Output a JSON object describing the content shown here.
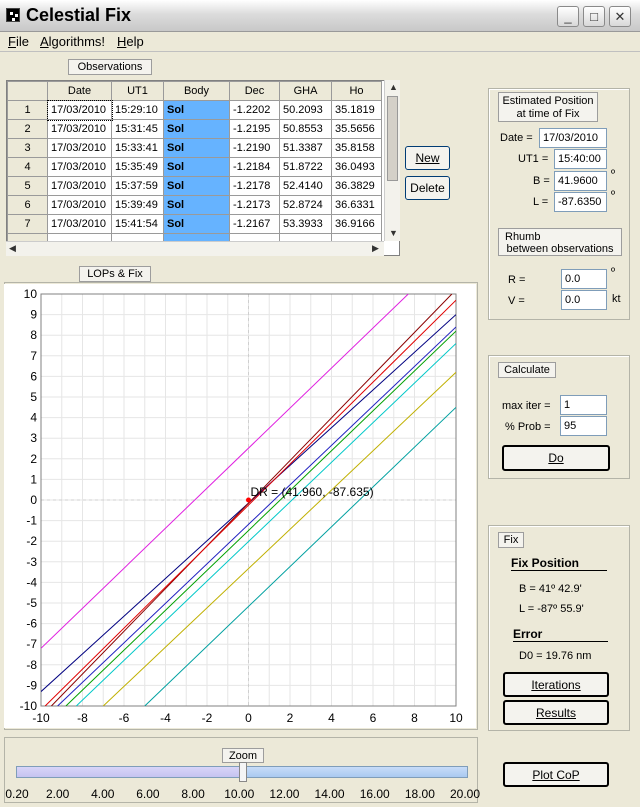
{
  "window": {
    "title": "Celestial Fix",
    "minimize": "_",
    "maximize": "□",
    "close": "✕"
  },
  "menu": [
    {
      "label": "File",
      "accel": "F",
      "rest": "ile"
    },
    {
      "label": "Algorithms!",
      "accel": "A",
      "rest": "lgorithms!"
    },
    {
      "label": "Help",
      "accel": "H",
      "rest": "elp"
    }
  ],
  "observations": {
    "button": "Observations",
    "columns": [
      "Date",
      "UT1",
      "Body",
      "Dec",
      "GHA",
      "Ho"
    ],
    "rows": [
      {
        "n": "1",
        "date": "17/03/2010",
        "ut1": "15:29:10",
        "body": "Sol",
        "dec": "-1.2202",
        "gha": "50.2093",
        "ho": "35.1819"
      },
      {
        "n": "2",
        "date": "17/03/2010",
        "ut1": "15:31:45",
        "body": "Sol",
        "dec": "-1.2195",
        "gha": "50.8553",
        "ho": "35.5656"
      },
      {
        "n": "3",
        "date": "17/03/2010",
        "ut1": "15:33:41",
        "body": "Sol",
        "dec": "-1.2190",
        "gha": "51.3387",
        "ho": "35.8158"
      },
      {
        "n": "4",
        "date": "17/03/2010",
        "ut1": "15:35:49",
        "body": "Sol",
        "dec": "-1.2184",
        "gha": "51.8722",
        "ho": "36.0493"
      },
      {
        "n": "5",
        "date": "17/03/2010",
        "ut1": "15:37:59",
        "body": "Sol",
        "dec": "-1.2178",
        "gha": "52.4140",
        "ho": "36.3829"
      },
      {
        "n": "6",
        "date": "17/03/2010",
        "ut1": "15:39:49",
        "body": "Sol",
        "dec": "-1.2173",
        "gha": "52.8724",
        "ho": "36.6331"
      },
      {
        "n": "7",
        "date": "17/03/2010",
        "ut1": "15:41:54",
        "body": "Sol",
        "dec": "-1.2167",
        "gha": "53.3933",
        "ho": "36.9166"
      }
    ],
    "new_button": "New",
    "delete_button": "Delete"
  },
  "estimated": {
    "button_line1": "Estimated Position",
    "button_line2": "at time of Fix",
    "date_label": "Date =",
    "date_value": "17/03/2010",
    "ut1_label": "UT1 =",
    "ut1_value": "15:40:00",
    "b_label": "B =",
    "b_value": "41.9600",
    "l_label": "L =",
    "l_value": "-87.6350",
    "degree": "º"
  },
  "rhumb": {
    "button_line1": "Rhumb",
    "button_line2": "between observations",
    "r_label": "R =",
    "r_value": "0.0",
    "r_unit": "º",
    "v_label": "V =",
    "v_value": "0.0",
    "v_unit": "kt"
  },
  "calculate": {
    "button": "Calculate",
    "maxiter_label": "max iter =",
    "maxiter_value": "1",
    "prob_label": "% Prob =",
    "prob_value": "95",
    "do_button": "Do"
  },
  "fix": {
    "button": "Fix",
    "heading": "Fix Position",
    "b_text": "B =  41º 42.9'",
    "l_text": "L = -87º 55.9'",
    "error_heading": "Error",
    "d0_text": "D0 = 19.76 nm",
    "iterations_button": "Iterations",
    "results_button": "Results"
  },
  "lops": {
    "button": "LOPs & Fix"
  },
  "chart_data": {
    "type": "line",
    "xlim": [
      -10,
      10
    ],
    "ylim": [
      -10,
      10
    ],
    "xticks": [
      "-10",
      "-8",
      "-6",
      "-4",
      "-2",
      "0",
      "2",
      "4",
      "6",
      "8",
      "10"
    ],
    "yticks": [
      "10",
      "9",
      "8",
      "7",
      "6",
      "5",
      "4",
      "3",
      "2",
      "1",
      "0",
      "-1",
      "-2",
      "-3",
      "-4",
      "-5",
      "-6",
      "-7",
      "-8",
      "-9",
      "-10"
    ],
    "grid": true,
    "annotation": {
      "text": "DR = (41.960, -87.635)",
      "x": 0,
      "y": 0
    },
    "series": [
      {
        "color": "#e020e0",
        "x": [
          -10,
          7.7
        ],
        "y": [
          -7.2,
          10
        ]
      },
      {
        "color": "#000080",
        "x": [
          -10,
          10
        ],
        "y": [
          -9.3,
          9.0
        ]
      },
      {
        "color": "#8b0000",
        "x": [
          -9.5,
          9.8
        ],
        "y": [
          -10,
          10
        ]
      },
      {
        "color": "#e00000",
        "x": [
          -9.8,
          10
        ],
        "y": [
          -10,
          9.7
        ]
      },
      {
        "color": "#2020c0",
        "x": [
          -9.2,
          10
        ],
        "y": [
          -10,
          8.4
        ]
      },
      {
        "color": "#00a000",
        "x": [
          -8.8,
          10
        ],
        "y": [
          -10,
          8.2
        ]
      },
      {
        "color": "#00c8c8",
        "x": [
          -8.3,
          10
        ],
        "y": [
          -10,
          7.6
        ]
      },
      {
        "color": "#c0b000",
        "x": [
          -7.0,
          10
        ],
        "y": [
          -10,
          6.2
        ]
      },
      {
        "color": "#00a0a0",
        "x": [
          -5.0,
          10
        ],
        "y": [
          -10,
          4.5
        ]
      }
    ]
  },
  "zoom": {
    "button": "Zoom",
    "value": 10.2,
    "min": 0.2,
    "max": 20.0,
    "ticks": [
      "0.20",
      "2.00",
      "4.00",
      "6.00",
      "8.00",
      "10.00",
      "12.00",
      "14.00",
      "16.00",
      "18.00",
      "20.00"
    ]
  },
  "plot_cop_button": "Plot CoP"
}
